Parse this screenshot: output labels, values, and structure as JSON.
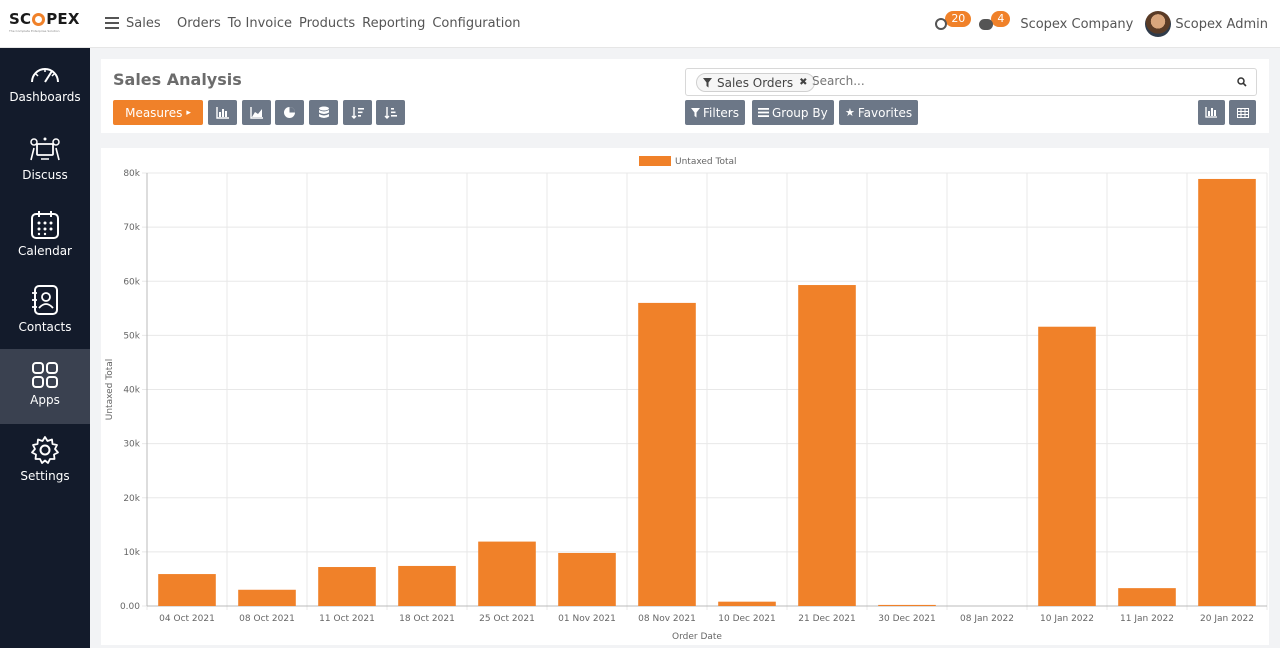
{
  "brand": {
    "name_left": "SC",
    "name_right": "PEX",
    "tagline": "The Complete Enterprise Solution"
  },
  "topbar": {
    "app_name": "Sales",
    "menu": [
      "Orders",
      "To Invoice",
      "Products",
      "Reporting",
      "Configuration"
    ],
    "activity_count": "20",
    "message_count": "4",
    "company": "Scopex Company",
    "user": "Scopex Admin"
  },
  "sidebar": {
    "items": [
      {
        "label": "Dashboards",
        "icon": "gauge-icon"
      },
      {
        "label": "Discuss",
        "icon": "discuss-icon"
      },
      {
        "label": "Calendar",
        "icon": "calendar-icon"
      },
      {
        "label": "Contacts",
        "icon": "contacts-icon"
      },
      {
        "label": "Apps",
        "icon": "apps-grid-icon"
      },
      {
        "label": "Settings",
        "icon": "gear-icon"
      }
    ],
    "active": "Apps"
  },
  "control": {
    "title": "Sales Analysis",
    "measures_label": "Measures",
    "search": {
      "facet": "Sales Orders",
      "placeholder": "Search..."
    },
    "filters_label": "Filters",
    "groupby_label": "Group By",
    "favorites_label": "Favorites"
  },
  "colors": {
    "accent": "#f08129",
    "sidebar_bg": "#131b2b",
    "button_gray": "#6c7787"
  },
  "chart_data": {
    "type": "bar",
    "title": "",
    "xlabel": "Order Date",
    "ylabel": "Untaxed Total",
    "legend": {
      "entries": [
        "Untaxed Total"
      ],
      "position": "top-center"
    },
    "categories": [
      "04 Oct 2021",
      "08 Oct 2021",
      "11 Oct 2021",
      "18 Oct 2021",
      "25 Oct 2021",
      "01 Nov 2021",
      "08 Nov 2021",
      "10 Dec 2021",
      "21 Dec 2021",
      "30 Dec 2021",
      "08 Jan 2022",
      "10 Jan 2022",
      "11 Jan 2022",
      "20 Jan 2022"
    ],
    "series": [
      {
        "name": "Untaxed Total",
        "color": "#f08129",
        "values": [
          5900,
          3000,
          7200,
          7400,
          11900,
          9800,
          56000,
          800,
          59300,
          200,
          0,
          51600,
          3300,
          78900
        ]
      }
    ],
    "ylim": [
      0,
      80000
    ],
    "yticks": [
      "0.00",
      "10k",
      "20k",
      "30k",
      "40k",
      "50k",
      "60k",
      "70k",
      "80k"
    ],
    "grid": true
  }
}
